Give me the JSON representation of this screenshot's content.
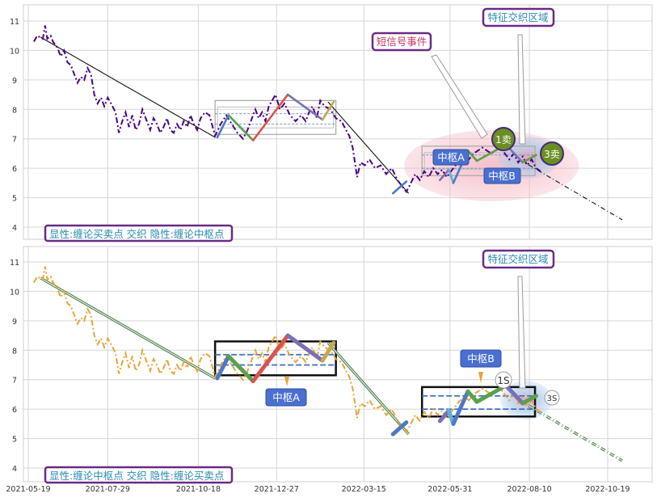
{
  "chart_data": [
    {
      "type": "line",
      "panel": "top",
      "caption": "显性:缠论买卖点 交织 隐性:缠论中枢点",
      "yticks": [
        "4",
        "5",
        "6",
        "7",
        "8",
        "9",
        "10",
        "11"
      ],
      "ylim": [
        3.7,
        11.5
      ],
      "xlim": [
        "2021-05-09",
        "2022-11-10"
      ],
      "grid": true,
      "price_color": "#4b0082",
      "price_style": "dash-dot",
      "labels": {
        "short_signal": "短信号事件",
        "feature_zone": "特征交织区域",
        "pivot_a": "中枢A",
        "pivot_b": "中枢B",
        "sell1": "1卖",
        "sell3": "3卖"
      }
    },
    {
      "type": "line",
      "panel": "bottom",
      "caption": "显性:缠论中枢点 交织 隐性:缠论买卖点",
      "yticks": [
        "4",
        "5",
        "6",
        "7",
        "8",
        "9",
        "10",
        "11"
      ],
      "ylim": [
        3.7,
        11.5
      ],
      "xlim": [
        "2021-05-09",
        "2022-11-10"
      ],
      "grid": true,
      "price_color": "#e8a33a",
      "price_style": "dash-dot",
      "labels": {
        "feature_zone": "特征交织区域",
        "pivot_a": "中枢A",
        "pivot_b": "中枢B",
        "s1": "1S",
        "s3": "3S"
      }
    }
  ],
  "xticks": [
    "2021-05-19",
    "2021-07-29",
    "2021-10-18",
    "2021-12-27",
    "2022-03-15",
    "2022-05-31",
    "2022-08-10",
    "2022-10-19"
  ],
  "price": [
    [
      "2021-05-24",
      10.3
    ],
    [
      "2021-05-27",
      10.5
    ],
    [
      "2021-06-01",
      10.4
    ],
    [
      "2021-06-03",
      10.85
    ],
    [
      "2021-06-05",
      10.4
    ],
    [
      "2021-06-08",
      10.5
    ],
    [
      "2021-06-10",
      10.3
    ],
    [
      "2021-06-14",
      10.1
    ],
    [
      "2021-06-17",
      9.8
    ],
    [
      "2021-06-20",
      10.0
    ],
    [
      "2021-06-23",
      9.6
    ],
    [
      "2021-06-26",
      9.5
    ],
    [
      "2021-06-29",
      9.2
    ],
    [
      "2021-07-02",
      8.9
    ],
    [
      "2021-07-05",
      9.1
    ],
    [
      "2021-07-08",
      9.0
    ],
    [
      "2021-07-11",
      9.4
    ],
    [
      "2021-07-14",
      9.2
    ],
    [
      "2021-07-17",
      8.5
    ],
    [
      "2021-07-20",
      8.2
    ],
    [
      "2021-07-23",
      8.4
    ],
    [
      "2021-07-26",
      8.1
    ],
    [
      "2021-07-29",
      8.4
    ],
    [
      "2021-08-01",
      8.2
    ],
    [
      "2021-08-05",
      7.9
    ],
    [
      "2021-08-08",
      7.2
    ],
    [
      "2021-08-11",
      7.6
    ],
    [
      "2021-08-14",
      7.9
    ],
    [
      "2021-08-17",
      7.4
    ],
    [
      "2021-08-20",
      7.8
    ],
    [
      "2021-08-23",
      7.3
    ],
    [
      "2021-08-26",
      7.5
    ],
    [
      "2021-08-29",
      8.0
    ],
    [
      "2021-09-02",
      7.6
    ],
    [
      "2021-09-05",
      7.3
    ],
    [
      "2021-09-08",
      7.7
    ],
    [
      "2021-09-11",
      7.5
    ],
    [
      "2021-09-14",
      7.2
    ],
    [
      "2021-09-17",
      7.4
    ],
    [
      "2021-09-20",
      7.7
    ],
    [
      "2021-09-23",
      7.3
    ],
    [
      "2021-09-26",
      7.2
    ],
    [
      "2021-09-29",
      7.5
    ],
    [
      "2021-10-02",
      7.3
    ],
    [
      "2021-10-05",
      7.6
    ],
    [
      "2021-10-08",
      7.4
    ],
    [
      "2021-10-11",
      7.8
    ],
    [
      "2021-10-14",
      7.5
    ],
    [
      "2021-10-17",
      7.3
    ],
    [
      "2021-10-20",
      7.7
    ],
    [
      "2021-10-24",
      7.9
    ],
    [
      "2021-10-28",
      7.8
    ],
    [
      "2021-11-02",
      7.1
    ],
    [
      "2021-11-07",
      7.5
    ],
    [
      "2021-11-12",
      7.8
    ],
    [
      "2021-11-17",
      7.5
    ],
    [
      "2021-11-22",
      7.2
    ],
    [
      "2021-11-27",
      7.0
    ],
    [
      "2021-12-01",
      7.3
    ],
    [
      "2021-12-05",
      7.7
    ],
    [
      "2021-12-08",
      8.0
    ],
    [
      "2021-12-11",
      7.7
    ],
    [
      "2021-12-14",
      7.9
    ],
    [
      "2021-12-17",
      7.6
    ],
    [
      "2021-12-20",
      8.1
    ],
    [
      "2021-12-23",
      8.3
    ],
    [
      "2021-12-26",
      8.5
    ],
    [
      "2021-12-30",
      8.0
    ],
    [
      "2022-01-03",
      8.2
    ],
    [
      "2022-01-08",
      7.8
    ],
    [
      "2022-01-13",
      7.6
    ],
    [
      "2022-01-18",
      7.8
    ],
    [
      "2022-01-22",
      7.6
    ],
    [
      "2022-01-25",
      7.9
    ],
    [
      "2022-01-28",
      8.1
    ],
    [
      "2022-02-01",
      7.7
    ],
    [
      "2022-02-04",
      8.3
    ],
    [
      "2022-02-08",
      8.1
    ],
    [
      "2022-02-13",
      8.0
    ],
    [
      "2022-02-18",
      7.7
    ],
    [
      "2022-02-23",
      7.6
    ],
    [
      "2022-02-27",
      7.3
    ],
    [
      "2022-03-02",
      7.1
    ],
    [
      "2022-03-05",
      6.7
    ],
    [
      "2022-03-07",
      6.2
    ],
    [
      "2022-03-09",
      5.7
    ],
    [
      "2022-03-12",
      6.2
    ],
    [
      "2022-03-16",
      6.1
    ],
    [
      "2022-03-20",
      6.3
    ],
    [
      "2022-03-25",
      6.0
    ],
    [
      "2022-03-30",
      6.1
    ],
    [
      "2022-04-04",
      5.8
    ],
    [
      "2022-04-09",
      6.0
    ],
    [
      "2022-04-14",
      5.6
    ],
    [
      "2022-04-18",
      5.4
    ],
    [
      "2022-04-22",
      5.2
    ],
    [
      "2022-04-26",
      5.5
    ],
    [
      "2022-04-30",
      5.8
    ],
    [
      "2022-05-04",
      5.6
    ],
    [
      "2022-05-08",
      5.9
    ],
    [
      "2022-05-12",
      5.7
    ],
    [
      "2022-05-16",
      6.0
    ],
    [
      "2022-05-20",
      5.8
    ],
    [
      "2022-05-24",
      5.95
    ],
    [
      "2022-05-28",
      5.7
    ],
    [
      "2022-06-01",
      5.9
    ],
    [
      "2022-06-05",
      6.1
    ],
    [
      "2022-06-09",
      6.3
    ],
    [
      "2022-06-13",
      6.4
    ],
    [
      "2022-06-17",
      6.3
    ],
    [
      "2022-06-21",
      6.5
    ],
    [
      "2022-06-25",
      6.6
    ],
    [
      "2022-06-29",
      6.7
    ],
    [
      "2022-07-03",
      6.6
    ],
    [
      "2022-07-07",
      6.5
    ],
    [
      "2022-07-11",
      6.6
    ],
    [
      "2022-07-15",
      6.7
    ],
    [
      "2022-07-19",
      6.5
    ],
    [
      "2022-07-23",
      6.3
    ],
    [
      "2022-07-27",
      6.5
    ],
    [
      "2022-07-31",
      6.2
    ],
    [
      "2022-08-04",
      6.4
    ],
    [
      "2022-08-08",
      6.1
    ],
    [
      "2022-08-12",
      6.3
    ],
    [
      "2022-08-16",
      6.0
    ],
    [
      "2022-08-20",
      5.9
    ]
  ],
  "bi_strokes": [
    {
      "from": [
        "2021-11-04",
        7.05
      ],
      "to": [
        "2021-11-14",
        7.8
      ],
      "color": "#4e79c4"
    },
    {
      "from": [
        "2021-11-14",
        7.8
      ],
      "to": [
        "2021-12-06",
        6.95
      ],
      "color": "#59a14f"
    },
    {
      "from": [
        "2021-12-06",
        6.95
      ],
      "to": [
        "2022-01-06",
        8.5
      ],
      "color": "#d9534f"
    },
    {
      "from": [
        "2022-01-06",
        8.5
      ],
      "to": [
        "2022-02-06",
        7.65
      ],
      "color": "#7b6fb5"
    },
    {
      "from": [
        "2022-02-06",
        7.65
      ],
      "to": [
        "2022-02-16",
        8.25
      ],
      "color": "#c9a64a"
    },
    {
      "from": [
        "2022-04-10",
        5.15
      ],
      "to": [
        "2022-04-22",
        5.55
      ],
      "color": "#4e79c4"
    },
    {
      "from": [
        "2022-05-22",
        5.6
      ],
      "to": [
        "2022-05-30",
        5.95
      ],
      "color": "#7b6fb5"
    },
    {
      "from": [
        "2022-05-30",
        5.95
      ],
      "to": [
        "2022-06-03",
        5.5
      ],
      "color": "#5bb0d8"
    },
    {
      "from": [
        "2022-06-03",
        5.5
      ],
      "to": [
        "2022-06-16",
        6.6
      ],
      "color": "#4e79c4"
    },
    {
      "from": [
        "2022-06-16",
        6.6
      ],
      "to": [
        "2022-06-24",
        6.25
      ],
      "color": "#59a14f"
    },
    {
      "from": [
        "2022-06-24",
        6.25
      ],
      "to": [
        "2022-07-20",
        6.8
      ],
      "color": "#59a14f"
    },
    {
      "from": [
        "2022-07-20",
        6.8
      ],
      "to": [
        "2022-08-04",
        6.2
      ],
      "color": "#7b6fb5"
    },
    {
      "from": [
        "2022-08-04",
        6.2
      ],
      "to": [
        "2022-08-16",
        6.45
      ],
      "color": "#59a14f"
    }
  ],
  "trend_lines": [
    {
      "from": [
        "2021-05-30",
        10.45
      ],
      "to": [
        "2021-11-02",
        7.05
      ],
      "style": "solid"
    },
    {
      "from": [
        "2022-02-11",
        8.25
      ],
      "to": [
        "2022-04-24",
        5.15
      ],
      "style": "solid"
    },
    {
      "from": [
        "2022-08-01",
        6.3
      ],
      "to": [
        "2022-11-01",
        4.25
      ],
      "style": "dashdot"
    }
  ],
  "pivots": [
    {
      "x0": "2021-11-02",
      "x1": "2022-02-18",
      "y0": 7.15,
      "y1": 8.3,
      "bands": [
        7.5,
        7.85
      ]
    },
    {
      "x0": "2022-05-06",
      "x1": "2022-08-15",
      "y0": 5.75,
      "y1": 6.75,
      "bands": [
        6.0,
        6.45
      ]
    }
  ]
}
